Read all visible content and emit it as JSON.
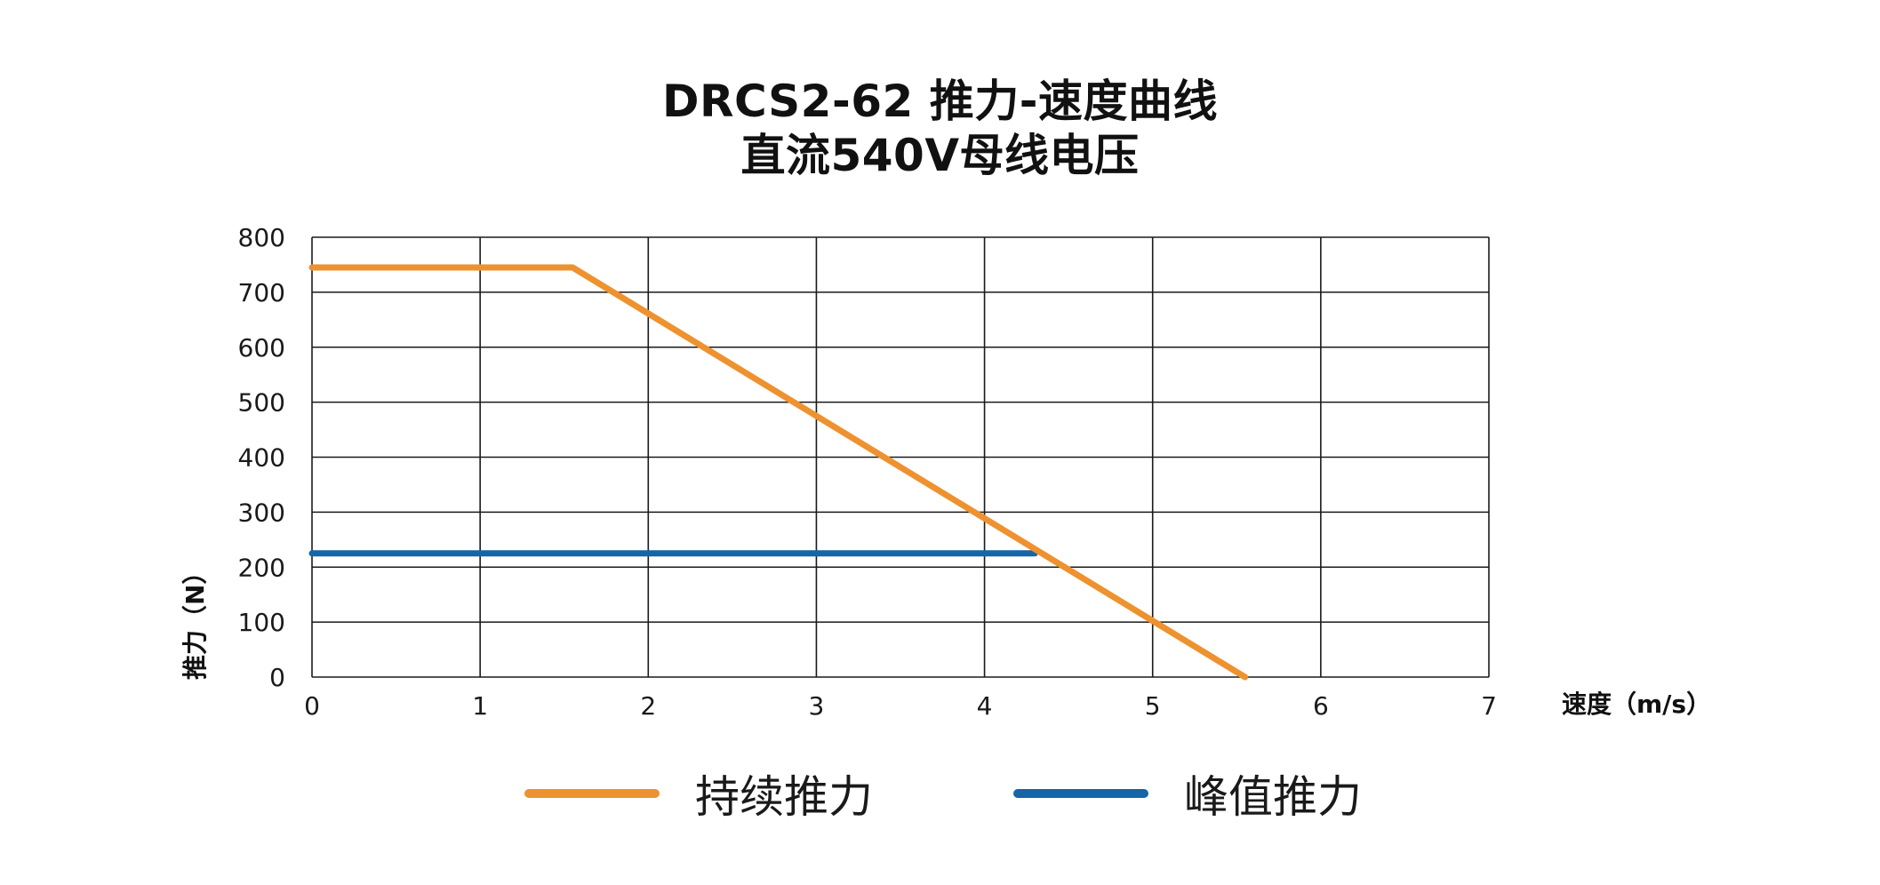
{
  "title": {
    "line1": "DRCS2-62 推力-速度曲线",
    "line2": "直流540V母线电压"
  },
  "chart_data": {
    "type": "line",
    "title": "DRCS2-62 推力-速度曲线 直流540V母线电压",
    "xlabel": "速度（m/s）",
    "ylabel": "推力（N）",
    "xlim": [
      0,
      7
    ],
    "ylim": [
      0,
      800
    ],
    "x_ticks": [
      0,
      1,
      2,
      3,
      4,
      5,
      6,
      7
    ],
    "y_ticks": [
      0,
      100,
      200,
      300,
      400,
      500,
      600,
      700,
      800
    ],
    "grid": true,
    "legend_position": "bottom-center",
    "series": [
      {
        "name": "持续推力",
        "color": "#EE922F",
        "points": [
          [
            0,
            745
          ],
          [
            1.55,
            745
          ],
          [
            5.55,
            0
          ]
        ]
      },
      {
        "name": "峰值推力",
        "color": "#1466A8",
        "points": [
          [
            0,
            225
          ],
          [
            4.3,
            225
          ]
        ]
      }
    ]
  }
}
